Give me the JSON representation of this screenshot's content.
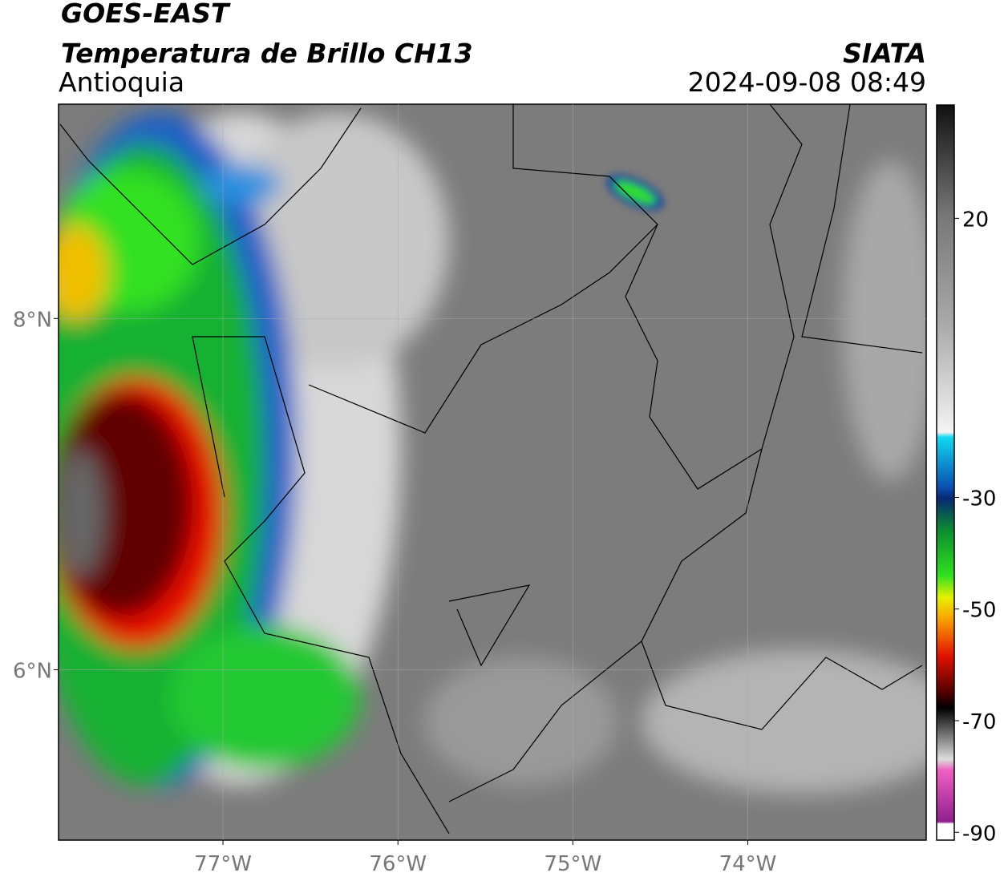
{
  "header": {
    "title": "GOES-EAST",
    "subtitle": "Temperatura de Brillo CH13",
    "region": "Antioquia",
    "source": "SIATA",
    "timestamp": "2024-09-08 08:49"
  },
  "map": {
    "xlim": [
      -77.94,
      -72.98
    ],
    "ylim": [
      5.03,
      9.22
    ],
    "xticks": [
      {
        "value": -77,
        "label": "77°W"
      },
      {
        "value": -76,
        "label": "76°W"
      },
      {
        "value": -75,
        "label": "75°W"
      },
      {
        "value": -74,
        "label": "74°W"
      }
    ],
    "yticks": [
      {
        "value": 6,
        "label": "6°N"
      },
      {
        "value": 8,
        "label": "8°N"
      }
    ],
    "grid": true
  },
  "colorbar": {
    "clim": [
      -91.4,
      40.3
    ],
    "ticks": [
      20,
      -30,
      -50,
      -70,
      -90
    ]
  }
}
